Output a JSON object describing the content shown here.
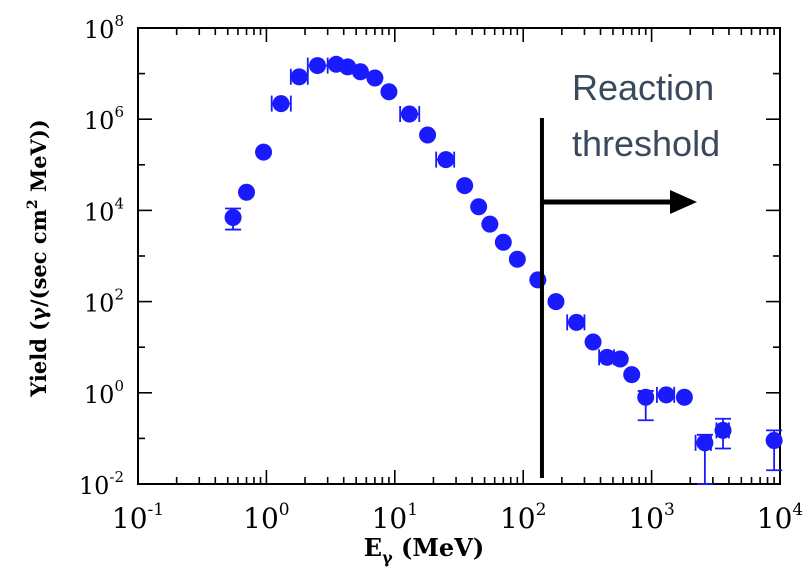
{
  "chart_data": {
    "type": "scatter",
    "xscale": "log",
    "yscale": "log",
    "xlim": [
      0.1,
      10000
    ],
    "ylim": [
      0.01,
      100000000
    ],
    "xlabel": {
      "main": "E",
      "sub": "γ",
      "rest": " (MeV)"
    },
    "ylabel": {
      "prefix": "Yield (γ/(sec cm",
      "sup": "2",
      "suffix": " MeV))"
    },
    "xticks": [
      {
        "value": 0.1,
        "base": "10",
        "exp": "-1"
      },
      {
        "value": 1,
        "base": "10",
        "exp": "0"
      },
      {
        "value": 10,
        "base": "10",
        "exp": "1"
      },
      {
        "value": 100,
        "base": "10",
        "exp": "2"
      },
      {
        "value": 1000,
        "base": "10",
        "exp": "3"
      },
      {
        "value": 10000,
        "base": "10",
        "exp": "4"
      }
    ],
    "yticks": [
      {
        "value": 0.01,
        "base": "10",
        "exp": "-2"
      },
      {
        "value": 1,
        "base": "10",
        "exp": "0"
      },
      {
        "value": 100,
        "base": "10",
        "exp": "2"
      },
      {
        "value": 10000,
        "base": "10",
        "exp": "4"
      },
      {
        "value": 1000000,
        "base": "10",
        "exp": "6"
      },
      {
        "value": 100000000,
        "base": "10",
        "exp": "8"
      }
    ],
    "marker_color": "#1a1aff",
    "points": [
      {
        "x": 0.55,
        "y": 7000,
        "ylo": 3800,
        "yhi": 11000
      },
      {
        "x": 0.7,
        "y": 25000
      },
      {
        "x": 0.95,
        "y": 190000
      },
      {
        "x": 1.3,
        "y": 2200000,
        "xlo": 1.1,
        "xhi": 1.55
      },
      {
        "x": 1.8,
        "y": 8500000,
        "xlo": 1.55,
        "xhi": 2.1
      },
      {
        "x": 2.5,
        "y": 15000000,
        "xlo": 2.1,
        "xhi": 3.0
      },
      {
        "x": 3.5,
        "y": 16000000
      },
      {
        "x": 4.3,
        "y": 14000000
      },
      {
        "x": 5.4,
        "y": 11000000
      },
      {
        "x": 7.0,
        "y": 8000000
      },
      {
        "x": 9.0,
        "y": 4000000
      },
      {
        "x": 13,
        "y": 1300000,
        "xlo": 11,
        "xhi": 15.5
      },
      {
        "x": 18,
        "y": 450000
      },
      {
        "x": 25,
        "y": 130000,
        "xlo": 21,
        "xhi": 29
      },
      {
        "x": 35,
        "y": 35000
      },
      {
        "x": 45,
        "y": 12000
      },
      {
        "x": 55,
        "y": 5000
      },
      {
        "x": 70,
        "y": 2000
      },
      {
        "x": 90,
        "y": 850
      },
      {
        "x": 130,
        "y": 300
      },
      {
        "x": 180,
        "y": 100
      },
      {
        "x": 260,
        "y": 35,
        "xlo": 220,
        "xhi": 300
      },
      {
        "x": 350,
        "y": 13
      },
      {
        "x": 450,
        "y": 6,
        "xlo": 390,
        "xhi": 510
      },
      {
        "x": 570,
        "y": 5.5
      },
      {
        "x": 700,
        "y": 2.5
      },
      {
        "x": 900,
        "y": 0.8,
        "ylo": 0.25,
        "yhi": 1.1
      },
      {
        "x": 1300,
        "y": 0.9,
        "xlo": 1100,
        "xhi": 1500
      },
      {
        "x": 1800,
        "y": 0.8
      },
      {
        "x": 2600,
        "y": 0.08,
        "ylo": 0.01,
        "yhi": 0.12,
        "xlo": 2200,
        "xhi": 2900
      },
      {
        "x": 3600,
        "y": 0.15,
        "ylo": 0.06,
        "yhi": 0.27,
        "xlo": 3200,
        "xhi": 4000
      },
      {
        "x": 9000,
        "y": 0.09,
        "ylo": 0.02,
        "yhi": 0.15,
        "xlo": 8500,
        "xhi": 9500
      }
    ],
    "annotation": {
      "lines": [
        "Reaction",
        "threshold"
      ],
      "threshold_x": 140,
      "arrow": "right"
    }
  }
}
